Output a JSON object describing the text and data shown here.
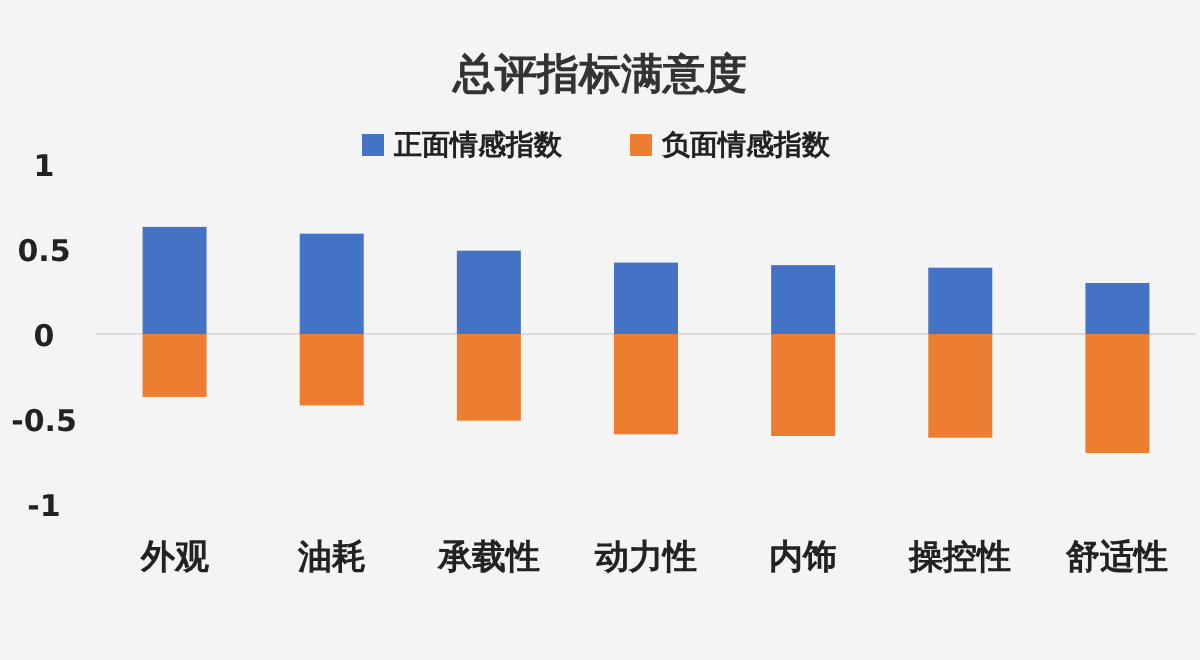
{
  "chart_data": {
    "type": "bar",
    "title": "总评指标满意度",
    "stacked": true,
    "legend": "top",
    "categories": [
      "外观",
      "油耗",
      "承载性",
      "动力性",
      "内饰",
      "操控性",
      "舒适性"
    ],
    "series": [
      {
        "name": "正面情感指数",
        "color": "#4472c4",
        "values": [
          0.63,
          0.59,
          0.49,
          0.42,
          0.405,
          0.39,
          0.3
        ]
      },
      {
        "name": "负面情感指数",
        "color": "#ed7d31",
        "values": [
          -0.37,
          -0.42,
          -0.51,
          -0.59,
          -0.6,
          -0.61,
          -0.7
        ]
      }
    ],
    "ylim": [
      -1,
      1
    ],
    "yticks": [
      -1,
      -0.5,
      0,
      0.5,
      1
    ]
  }
}
